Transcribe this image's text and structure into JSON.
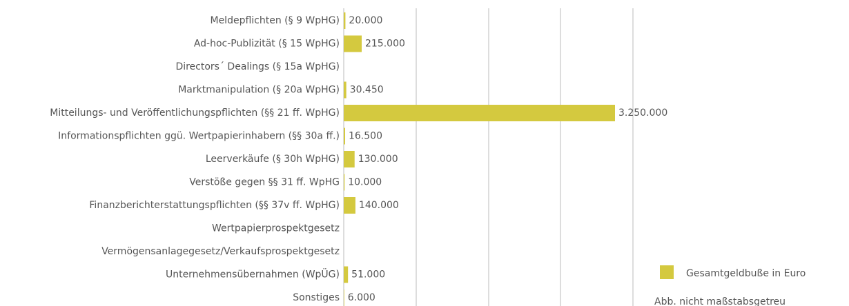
{
  "chart_data": {
    "type": "bar",
    "orientation": "horizontal",
    "categories": [
      "Meldepflichten (§ 9 WpHG)",
      "Ad-hoc-Publizität (§ 15 WpHG)",
      "Directors´ Dealings (§ 15a WpHG)",
      "Marktmanipulation (§ 20a WpHG)",
      "Mitteilungs- und Veröffentlichungspflichten (§§ 21 ff. WpHG)",
      "Informationspflichten ggü. Wertpapierinhabern (§§ 30a ff.)",
      "Leerverkäufe (§ 30h WpHG)",
      "Verstöße gegen §§ 31 ff. WpHG",
      "Finanzberichterstattungspflichten (§§ 37v ff. WpHG)",
      "Wertpapierprospektgesetz",
      "Vermögensanlagegesetz/Verkaufsprospektgesetz",
      "Unternehmensübernahmen (WpÜG)",
      "Sonstiges"
    ],
    "series": [
      {
        "name": "Gesamtgeldbuße in Euro",
        "color": "#d4c93f",
        "values": [
          20000,
          215000,
          null,
          30450,
          3250000,
          16500,
          130000,
          10000,
          140000,
          null,
          null,
          51000,
          6000
        ],
        "value_labels": [
          "20.000",
          "215.000",
          null,
          "30.450",
          "3.250.000",
          "16.500",
          "130.000",
          "10.000",
          "140.000",
          null,
          null,
          "51.000",
          "6.000"
        ]
      }
    ],
    "legend": "bottom-right",
    "annotations": [
      "Abb. nicht maßstabsgetreu"
    ]
  }
}
